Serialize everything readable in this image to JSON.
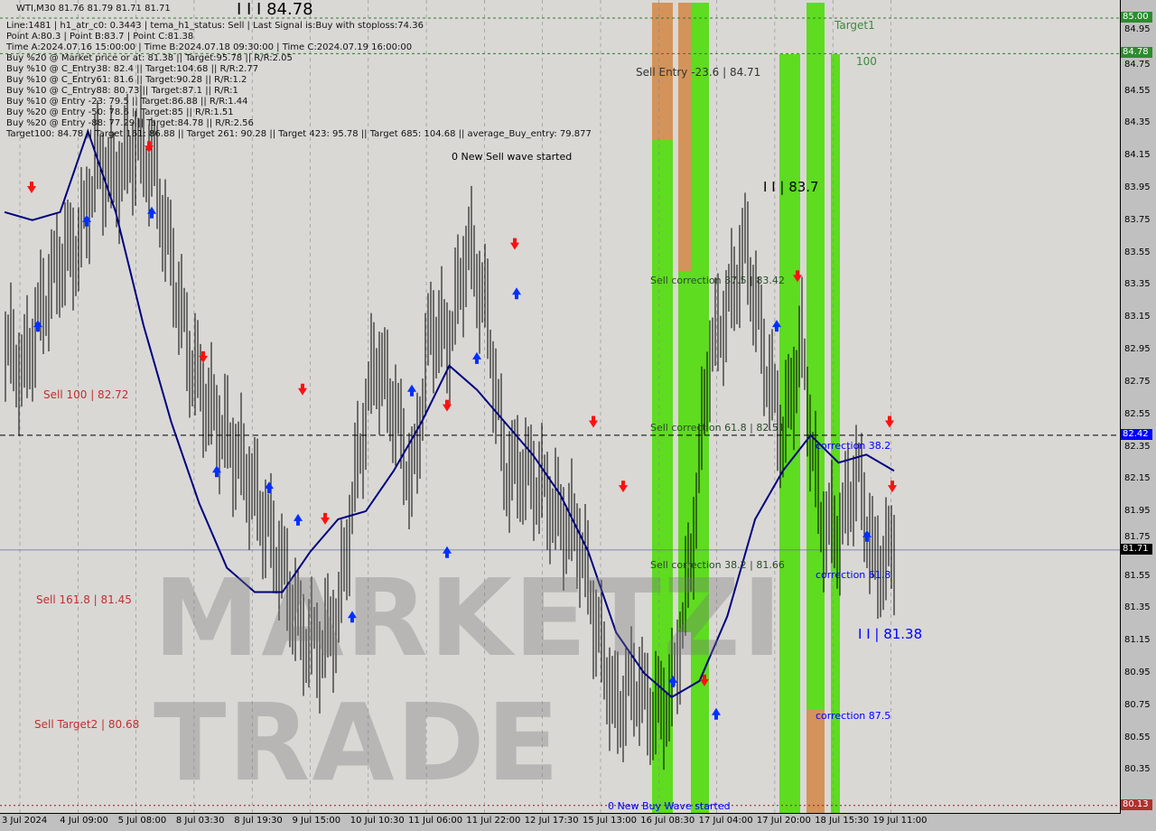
{
  "header": {
    "symbol": "WTI,M30  81.76 81.79 81.71 81.71",
    "lines": [
      "Line:1481 | h1_atr_c0: 0.3443 | tema_h1_status: Sell | Last Signal is:Buy with stoploss:74.36",
      "Point A:80.3 | Point B:83.7 | Point C:81.38",
      "Time A:2024.07.16 15:00:00 | Time B:2024.07.18 09:30:00 | Time C:2024.07.19 16:00:00",
      "Buy %20 @ Market price or at: 81.38 || Target:95.78 || R/R:2.05",
      "Buy %10 @ C_Entry38: 82.4 || Target:104.68 || R/R:2.77",
      "Buy %10 @ C_Entry61: 81.6 || Target:90.28 || R/R:1.2",
      "Buy %10 @ C_Entry88: 80.73 || Target:87.1 || R/R:1",
      "Buy %10 @ Entry -23: 79.5 || Target:86.88 || R/R:1.44",
      "Buy %20 @ Entry -50: 78.6 || Target:85 || R/R:1.51",
      "Buy %20 @ Entry -88: 77.29 || Target:84.78 || R/R:2.56",
      "Target100: 84.78 || Target 161: 86.88 || Target 261: 90.28 || Target 423: 95.78 || Target 685: 104.68 || average_Buy_entry: 79.877"
    ]
  },
  "annotations": {
    "top_level": "I I I 84.78",
    "sell100": "Sell 100 | 82.72",
    "sell161": "Sell 161.8 | 81.45",
    "sell_target2": "Sell Target2 | 80.68",
    "sell_entry": "Sell Entry -23.6 | 84.71",
    "sell_corr875": "Sell correction 87.5 | 83.42",
    "sell_corr618": "Sell correction 61.8 | 82.51",
    "sell_corr382": "Sell correction 38.2 | 81.66",
    "new_sell": "0 New Sell wave started",
    "point_b": "I I | 83.7",
    "target1": "Target1",
    "hundred": "100",
    "corr382": "correction 38.2",
    "corr618": "correction 61.8",
    "point_c": "I I | 81.38",
    "corr875": "correction 87.5",
    "new_buy": "0 New Buy Wave started",
    "watermark": "MARKETZI TRADE"
  },
  "chart_data": {
    "type": "line",
    "ylim": [
      80.05,
      85.05
    ],
    "y_ticks": [
      "84.95",
      "84.75",
      "84.55",
      "84.35",
      "84.15",
      "83.95",
      "83.75",
      "83.55",
      "83.35",
      "83.15",
      "82.95",
      "82.75",
      "82.55",
      "82.35",
      "82.15",
      "81.95",
      "81.75",
      "81.55",
      "81.35",
      "81.15",
      "80.95",
      "80.75",
      "80.55",
      "80.35"
    ],
    "x_ticks": [
      "3 Jul 2024",
      "4 Jul 09:00",
      "5 Jul 08:00",
      "8 Jul 03:30",
      "8 Jul 19:30",
      "9 Jul 15:00",
      "10 Jul 10:30",
      "11 Jul 06:00",
      "11 Jul 22:00",
      "12 Jul 17:30",
      "15 Jul 13:00",
      "16 Jul 08:30",
      "17 Jul 04:00",
      "17 Jul 20:00",
      "18 Jul 15:30",
      "19 Jul 11:00"
    ],
    "price_tags": [
      {
        "value": "85.00",
        "color": "#2e8b2e"
      },
      {
        "value": "84.78",
        "color": "#2e8b2e"
      },
      {
        "value": "82.42",
        "color": "#0000ff"
      },
      {
        "value": "81.71",
        "color": "#000000"
      },
      {
        "value": "80.13",
        "color": "#b03030"
      }
    ],
    "series": [
      {
        "values": [
          83.0,
          82.8,
          83.2,
          83.5,
          83.6,
          84.1,
          84.0,
          84.2,
          84.1,
          83.5,
          82.9,
          82.6,
          82.4,
          82.2,
          81.9,
          81.6,
          81.2,
          81.1,
          81.3,
          82.2,
          82.9,
          82.6,
          82.1,
          83.1,
          83.0,
          83.6,
          83.2,
          82.2,
          82.2,
          82.1,
          81.9,
          81.8,
          81.2,
          80.7,
          80.9,
          80.7,
          80.8,
          81.6,
          82.9,
          83.2,
          83.6,
          82.9,
          82.4,
          83.0,
          81.9,
          81.8,
          82.2,
          81.6,
          81.71
        ],
        "color": "#000000"
      },
      {
        "values": [
          83.8,
          83.75,
          83.8,
          84.3,
          83.8,
          83.1,
          82.5,
          82.0,
          81.6,
          81.45,
          81.45,
          81.7,
          81.9,
          81.95,
          82.2,
          82.5,
          82.85,
          82.7,
          82.5,
          82.3,
          82.05,
          81.7,
          81.2,
          80.95,
          80.8,
          80.9,
          81.3,
          81.9,
          82.2,
          82.42,
          82.25,
          82.3,
          82.2
        ],
        "color": "#00007f"
      }
    ]
  }
}
